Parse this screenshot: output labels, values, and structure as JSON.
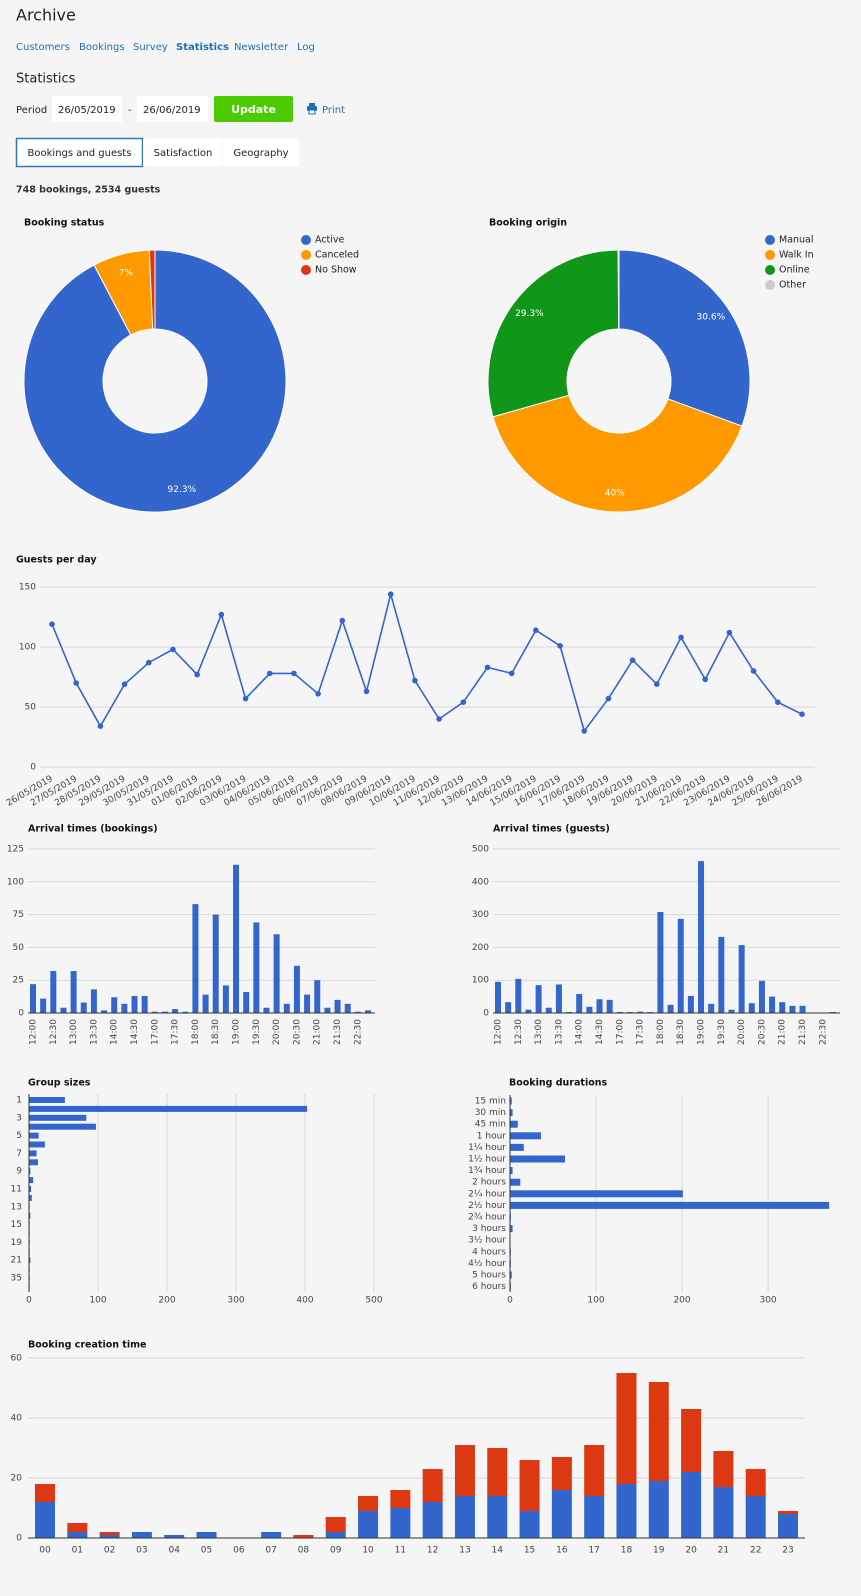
{
  "header": {
    "title": "Archive",
    "nav": [
      "Customers",
      "Bookings",
      "Survey",
      "Statistics",
      "Newsletter",
      "Log"
    ],
    "section": "Statistics",
    "period_label": "Period",
    "from": "26/05/2019",
    "separator": "-",
    "to": "26/06/2019",
    "update": "Update",
    "print": "Print",
    "tabs": [
      "Bookings and guests",
      "Satisfaction",
      "Geography"
    ],
    "summary": "748 bookings, 2534 guests"
  },
  "chart_data": [
    {
      "type": "pie",
      "title": "Booking status",
      "categories": [
        "Active",
        "Canceled",
        "No Show"
      ],
      "values": [
        92.3,
        7,
        0.7
      ],
      "value_labels": [
        "92.3%",
        "7%",
        null
      ],
      "colors": [
        "#3366cc",
        "#ff9900",
        "#dc3912"
      ],
      "donut": true,
      "legend": "right"
    },
    {
      "type": "pie",
      "title": "Booking origin",
      "categories": [
        "Manual",
        "Walk In",
        "Online",
        "Other"
      ],
      "values": [
        30.6,
        40,
        29.3,
        0.1
      ],
      "value_labels": [
        "30.6%",
        "40%",
        "29.3%",
        null
      ],
      "colors": [
        "#3366cc",
        "#ff9900",
        "#109618",
        "#cccccc"
      ],
      "donut": true,
      "legend": "right"
    },
    {
      "type": "line",
      "title": "Guests per day",
      "categories": [
        "26/05/2019",
        "27/05/2019",
        "28/05/2019",
        "29/05/2019",
        "30/05/2019",
        "31/05/2019",
        "01/06/2019",
        "02/06/2019",
        "03/06/2019",
        "04/06/2019",
        "05/06/2019",
        "06/06/2019",
        "07/06/2019",
        "08/06/2019",
        "09/06/2019",
        "10/06/2019",
        "11/06/2019",
        "12/06/2019",
        "13/06/2019",
        "14/06/2019",
        "15/06/2019",
        "16/06/2019",
        "17/06/2019",
        "18/06/2019",
        "19/06/2019",
        "20/06/2019",
        "21/06/2019",
        "22/06/2019",
        "23/06/2019",
        "24/06/2019",
        "25/06/2019",
        "26/06/2019"
      ],
      "values": [
        119,
        70,
        34,
        69,
        87,
        98,
        77,
        127,
        57,
        78,
        78,
        61,
        122,
        63,
        144,
        72,
        40,
        54,
        83,
        78,
        114,
        101,
        30,
        57,
        89,
        69,
        108,
        73,
        112,
        80,
        54,
        44
      ],
      "color": "#3366cc",
      "ylim": [
        0,
        150
      ],
      "yticks": [
        0,
        50,
        100,
        150
      ],
      "grid": true
    },
    {
      "type": "bar",
      "title": "Arrival times (bookings)",
      "categories": [
        "12:00",
        null,
        "12:30",
        null,
        "13:00",
        null,
        "13:30",
        null,
        "14:00",
        null,
        "14:30",
        null,
        "17:00",
        null,
        "17:30",
        null,
        "18:00",
        null,
        "18:30",
        null,
        "19:00",
        null,
        "19:30",
        null,
        "20:00",
        null,
        "20:30",
        null,
        "21:00",
        null,
        "21:30",
        null,
        "22:30",
        null
      ],
      "values": [
        22,
        11,
        32,
        4,
        32,
        8,
        18,
        2,
        12,
        7,
        13,
        13,
        1,
        1,
        3,
        1,
        83,
        14,
        75,
        21,
        113,
        16,
        69,
        4,
        60,
        7,
        36,
        14,
        25,
        4,
        10,
        7,
        1,
        2
      ],
      "color": "#3366cc",
      "ylim": [
        0,
        125
      ],
      "yticks": [
        0,
        25,
        50,
        75,
        100,
        125
      ],
      "grid": true
    },
    {
      "type": "bar",
      "title": "Arrival times (guests)",
      "categories": [
        "12:00",
        null,
        "12:30",
        null,
        "13:00",
        null,
        "13:30",
        null,
        "14:00",
        null,
        "14:30",
        null,
        "17:00",
        null,
        "17:30",
        null,
        "18:00",
        null,
        "18:30",
        null,
        "19:00",
        null,
        "19:30",
        null,
        "20:00",
        null,
        "20:30",
        null,
        "21:00",
        null,
        "21:30",
        null,
        "22:30",
        null
      ],
      "values": [
        95,
        33,
        104,
        10,
        85,
        16,
        87,
        3,
        58,
        19,
        42,
        40,
        3,
        3,
        4,
        3,
        308,
        25,
        287,
        52,
        463,
        28,
        232,
        10,
        207,
        30,
        98,
        50,
        33,
        22,
        22,
        1,
        1,
        3
      ],
      "color": "#3366cc",
      "ylim": [
        0,
        500
      ],
      "yticks": [
        0,
        100,
        200,
        300,
        400,
        500
      ],
      "grid": true
    },
    {
      "type": "hbar",
      "title": "Group sizes",
      "categories": [
        "1",
        null,
        "3",
        null,
        "5",
        null,
        "7",
        null,
        "9",
        null,
        "11",
        null,
        "13",
        null,
        "15",
        null,
        "19",
        null,
        "21",
        null,
        "35",
        null
      ],
      "values": [
        52,
        403,
        83,
        97,
        14,
        23,
        11,
        13,
        2,
        6,
        3,
        4,
        1,
        2,
        1,
        1,
        1,
        1,
        2,
        1,
        1,
        1
      ],
      "color": "#3366cc",
      "xlim": [
        0,
        500
      ],
      "xticks": [
        0,
        100,
        200,
        300,
        400,
        500
      ],
      "grid": true
    },
    {
      "type": "hbar",
      "title": "Booking durations",
      "categories": [
        "15 min",
        "30 min",
        "45 min",
        "1 hour",
        "1¼ hour",
        "1½ hour",
        "1¾ hour",
        "2 hours",
        "2¼ hour",
        "2½ hour",
        "2¾ hour",
        "3 hours",
        "3½ hour",
        "4 hours",
        "4½ hour",
        "5 hours",
        "6 hours"
      ],
      "values": [
        2,
        3,
        9,
        36,
        16,
        64,
        3,
        12,
        201,
        371,
        1,
        3,
        0,
        1,
        1,
        2,
        1
      ],
      "color": "#3366cc",
      "xlim": [
        0,
        372
      ],
      "xticks": [
        0,
        100,
        200,
        300
      ],
      "grid": true
    },
    {
      "type": "bar",
      "title": "Booking creation time",
      "stacked": true,
      "categories": [
        "00",
        "01",
        "02",
        "03",
        "04",
        "05",
        "06",
        "07",
        "08",
        "09",
        "10",
        "11",
        "12",
        "13",
        "14",
        "15",
        "16",
        "17",
        "18",
        "19",
        "20",
        "21",
        "22",
        "23"
      ],
      "series": [
        {
          "color": "#3366cc",
          "values": [
            12,
            2,
            1,
            2,
            1,
            2,
            0,
            2,
            0,
            2,
            9,
            10,
            12,
            14,
            14,
            9,
            16,
            14,
            18,
            19,
            22,
            17,
            14,
            8
          ]
        },
        {
          "color": "#dc3912",
          "values": [
            6,
            3,
            1,
            0,
            0,
            0,
            0,
            0,
            1,
            5,
            5,
            6,
            11,
            17,
            16,
            17,
            11,
            17,
            37,
            33,
            21,
            12,
            9,
            1
          ]
        }
      ],
      "ylim": [
        0,
        60
      ],
      "yticks": [
        0,
        20,
        40,
        60
      ],
      "grid": true
    }
  ]
}
